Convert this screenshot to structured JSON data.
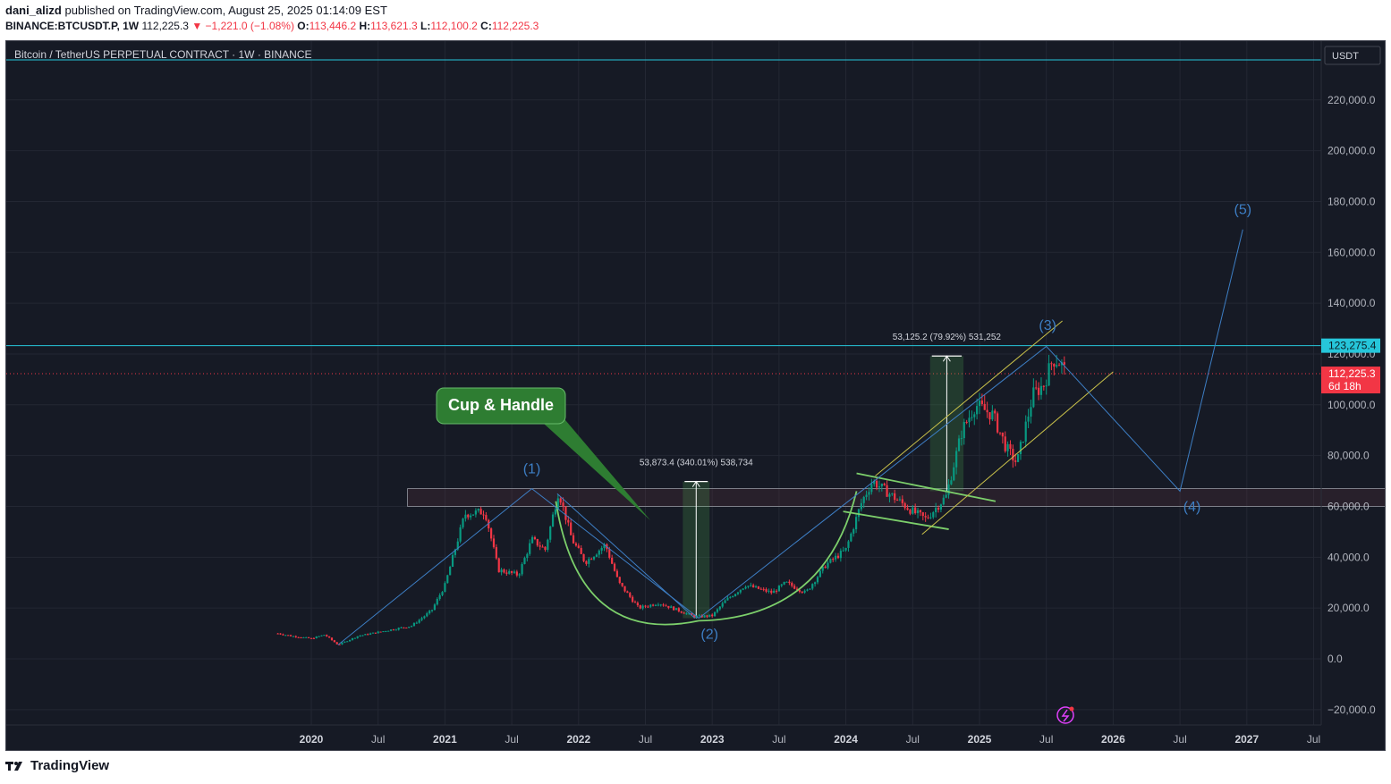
{
  "header": {
    "author": "dani_alizd",
    "published_text": "published on TradingView.com, August 25, 2025 01:14:09 EST",
    "symbol": "BINANCE:BTCUSDT.P, 1W",
    "last": "112,225.3",
    "change": "−1,221.0 (−1.08%)",
    "o_label": "O:",
    "o": "113,446.2",
    "h_label": "H:",
    "h": "113,621.3",
    "l_label": "L:",
    "l": "112,100.2",
    "c_label": "C:",
    "c": "112,225.3"
  },
  "legend_title": "Bitcoin / TetherUS PERPETUAL CONTRACT · 1W · BINANCE",
  "currency": "USDT",
  "footer": {
    "logo_text": "TradingView"
  },
  "colors": {
    "background": "#161a25",
    "up": "#089981",
    "down": "#f23645",
    "channel": "#c9c14a",
    "cup": "#7ccf6b",
    "wave": "#3d7ec4",
    "level": "#26c6da",
    "callout": "#2e7d32"
  },
  "chart_data": {
    "type": "candlestick",
    "interval": "1W",
    "y_axis": {
      "min": -20000,
      "max": 220000,
      "ticks": [
        "220,000.0",
        "200,000.0",
        "180,000.0",
        "160,000.0",
        "140,000.0",
        "120,000.0",
        "100,000.0",
        "80,000.0",
        "60,000.0",
        "40,000.0",
        "20,000.0",
        "0.0",
        "−20,000.0"
      ]
    },
    "x_axis": {
      "ticks": [
        "2020",
        "Jul",
        "2021",
        "Jul",
        "2022",
        "Jul",
        "2023",
        "Jul",
        "2024",
        "Jul",
        "2025",
        "Jul",
        "2026",
        "Jul",
        "2027",
        "Jul"
      ],
      "bold": [
        "2020",
        "2021",
        "2022",
        "2023",
        "2024",
        "2025",
        "2026",
        "2027"
      ]
    },
    "price_labels": [
      {
        "value": 123275.4,
        "text": "123,275.4",
        "color": "#26c6da"
      },
      {
        "value": 112225.3,
        "text": "112,225.3",
        "sub": "6d 18h",
        "color": "#f23645"
      }
    ],
    "approx_path": [
      [
        2019.75,
        10000
      ],
      [
        2019.85,
        9000
      ],
      [
        2020.0,
        8000
      ],
      [
        2020.1,
        9500
      ],
      [
        2020.2,
        5500
      ],
      [
        2020.35,
        9000
      ],
      [
        2020.55,
        11000
      ],
      [
        2020.75,
        13000
      ],
      [
        2020.9,
        19000
      ],
      [
        2021.0,
        29000
      ],
      [
        2021.15,
        57000
      ],
      [
        2021.3,
        58000
      ],
      [
        2021.4,
        35000
      ],
      [
        2021.55,
        33000
      ],
      [
        2021.65,
        47000
      ],
      [
        2021.75,
        43000
      ],
      [
        2021.85,
        66000
      ],
      [
        2021.95,
        47000
      ],
      [
        2022.05,
        38000
      ],
      [
        2022.2,
        45000
      ],
      [
        2022.3,
        30000
      ],
      [
        2022.45,
        20000
      ],
      [
        2022.6,
        22000
      ],
      [
        2022.75,
        19000
      ],
      [
        2022.87,
        16500
      ],
      [
        2023.0,
        17000
      ],
      [
        2023.1,
        23000
      ],
      [
        2023.25,
        29000
      ],
      [
        2023.45,
        26000
      ],
      [
        2023.55,
        30000
      ],
      [
        2023.7,
        26000
      ],
      [
        2023.85,
        37000
      ],
      [
        2024.0,
        43000
      ],
      [
        2024.12,
        62000
      ],
      [
        2024.2,
        70000
      ],
      [
        2024.35,
        64000
      ],
      [
        2024.5,
        58000
      ],
      [
        2024.6,
        55000
      ],
      [
        2024.75,
        64000
      ],
      [
        2024.87,
        90000
      ],
      [
        2024.97,
        100000
      ],
      [
        2025.1,
        96000
      ],
      [
        2025.2,
        83000
      ],
      [
        2025.28,
        77000
      ],
      [
        2025.4,
        104000
      ],
      [
        2025.48,
        108000
      ],
      [
        2025.55,
        118000
      ],
      [
        2025.6,
        117000
      ],
      [
        2025.65,
        112225
      ]
    ],
    "annotations": [
      {
        "type": "callout",
        "text": "Cup & Handle"
      },
      {
        "type": "measure",
        "text": "53,873.4 (340.01%) 538,734"
      },
      {
        "type": "measure",
        "text": "53,125.2 (79.92%) 531,252"
      },
      {
        "type": "wave",
        "text": "(1)"
      },
      {
        "type": "wave",
        "text": "(2)"
      },
      {
        "type": "wave",
        "text": "(3)"
      },
      {
        "type": "wave",
        "text": "(4)"
      },
      {
        "type": "wave",
        "text": "(5)"
      }
    ],
    "support_zone": [
      60000,
      67000
    ],
    "resistance_line": 123275.4,
    "wave_projection": [
      [
        2020.2,
        5500
      ],
      [
        2021.65,
        67000
      ],
      [
        2022.9,
        16000
      ],
      [
        2025.5,
        123000
      ],
      [
        2026.5,
        66000
      ],
      [
        2026.97,
        169000
      ]
    ]
  }
}
